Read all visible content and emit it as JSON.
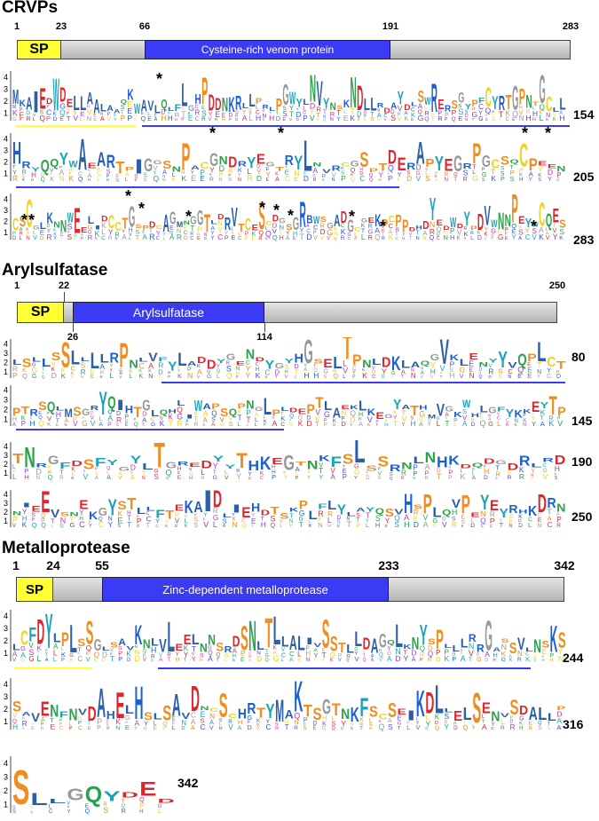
{
  "sections": [
    {
      "title": "CRVPs",
      "ticks": [
        "1",
        "23",
        "66",
        "191",
        "283"
      ],
      "sp_label": "SP",
      "domain_label": "Cysteine-rich venom protein",
      "rows": [
        {
          "end": "154",
          "seq": "MKAIEDWDELLAALAAQKWAVLQLFLGHPDDNKRLLPRLPGWYLNVYNSKNDLLRDAYDLSWRERSGYPFCYRTGPNTGCLL"
        },
        {
          "end": "205",
          "seq": "HRYQQYWAEARTPIGGSNPACGNDRYEGTRYLNVRCGSPTDERAPYEGRPGCSQCPEEN"
        },
        {
          "end": "283",
          "seq": "CSCGLKNNWEELIDCCTGSPDCAGMNGGTLDRVTCESCDGSGRBWSGADGCGEKPCPPDHDYEDWDYPDVWNNPEYWCQES"
        }
      ],
      "stars": "*",
      "axis_labels": [
        "4",
        "3",
        "2",
        "1"
      ]
    },
    {
      "title": "Arylsulfatase",
      "ticks": [
        "1",
        "22",
        "250",
        "26",
        "114"
      ],
      "sp_label": "SP",
      "domain_label": "Arylsulfatase",
      "rows": [
        {
          "end": "80",
          "seq": "LSLLSSLLLLRPNLVFYLADDYGENDYGYHGSELTPNLDKLAQGVKLENYYVQPLCT"
        },
        {
          "end": "145",
          "seq": "PTRSQLMSGRYQIHTGLQHLIWAPSQPNGLPLDEPTLAEKLKEGYATHMVGKWHLGFYKKEYTP"
        },
        {
          "end": "190",
          "seq": "TNRGFDSFYGYLTGREDYYTHKEGTNKFSLSSRNLNHKDQDGDRLRD"
        },
        {
          "end": "250",
          "seq": "NIEEVSNEKGYSTLLFTEKAIDLIEHDTSKPLFLYLAYQSVHSPLQVPEYEYRHKDRN"
        }
      ],
      "axis_labels": [
        "4",
        "3",
        "2",
        "1"
      ]
    },
    {
      "title": "Metalloprotease",
      "ticks": [
        "1",
        "24",
        "55",
        "233",
        "342"
      ],
      "sp_label": "SP",
      "domain_label": "Zinc-dependent metalloprotease",
      "rows": [
        {
          "end": "244",
          "seq": "LCFDYLPLSSGLSAVKNLVLEELNNSRDSNLTLLALIVSSTLLDAGQLKNYSPLLLRRGASSVLNSKS"
        },
        {
          "end": "316",
          "seq": "SAVENFNVDAHELHSLSAVDNCSCHRTYMAKTSGTNKFSCSEIKDLLELSENVSDALLP"
        },
        {
          "end": "342",
          "seq": "SLLGQYDED"
        }
      ],
      "axis_labels": [
        "4",
        "3",
        "2",
        "1"
      ]
    }
  ],
  "colors": {
    "sp": "#ffff33",
    "domain": "#3b3bf5",
    "underline_sp": "#ffff33",
    "underline_domain": "#3b3bf5"
  }
}
